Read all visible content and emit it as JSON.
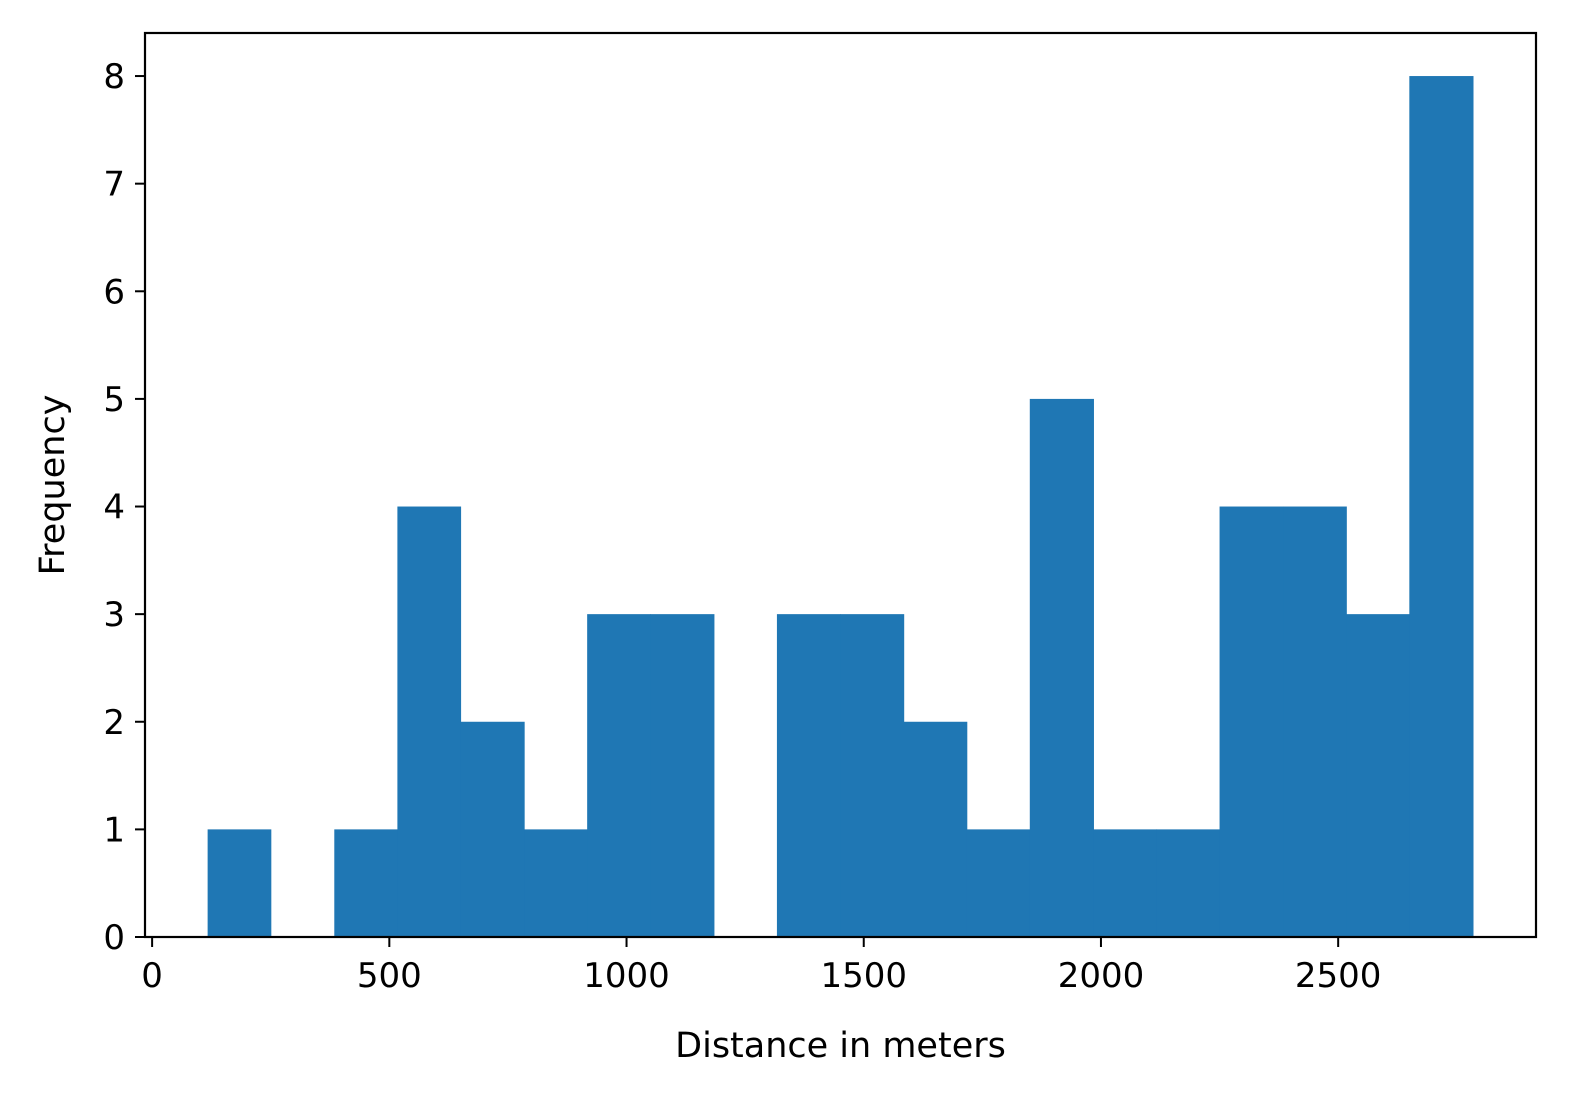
{
  "chart_data": {
    "type": "bar",
    "subtype": "histogram",
    "title": "",
    "xlabel": "Distance in meters",
    "ylabel": "Frequency",
    "bin_edges": [
      117,
      250,
      384,
      517,
      650,
      784,
      917,
      1050,
      1184,
      1317,
      1450,
      1584,
      1717,
      1850,
      1984,
      2117,
      2250,
      2384,
      2517,
      2650,
      2784
    ],
    "values": [
      1,
      0,
      1,
      4,
      2,
      1,
      3,
      3,
      0,
      3,
      3,
      2,
      1,
      5,
      1,
      1,
      4,
      4,
      3,
      8
    ],
    "xlim": [
      -15,
      2917
    ],
    "ylim": [
      0,
      8.4
    ],
    "xticks": [
      0,
      500,
      1000,
      1500,
      2000,
      2500
    ],
    "xtick_labels": [
      "0",
      "500",
      "1000",
      "1500",
      "2000",
      "2500"
    ],
    "yticks": [
      0,
      1,
      2,
      3,
      4,
      5,
      6,
      7,
      8
    ],
    "ytick_labels": [
      "0",
      "1",
      "2",
      "3",
      "4",
      "5",
      "6",
      "7",
      "8"
    ],
    "bar_color": "#1f77b4",
    "grid": false,
    "legend": "none"
  }
}
